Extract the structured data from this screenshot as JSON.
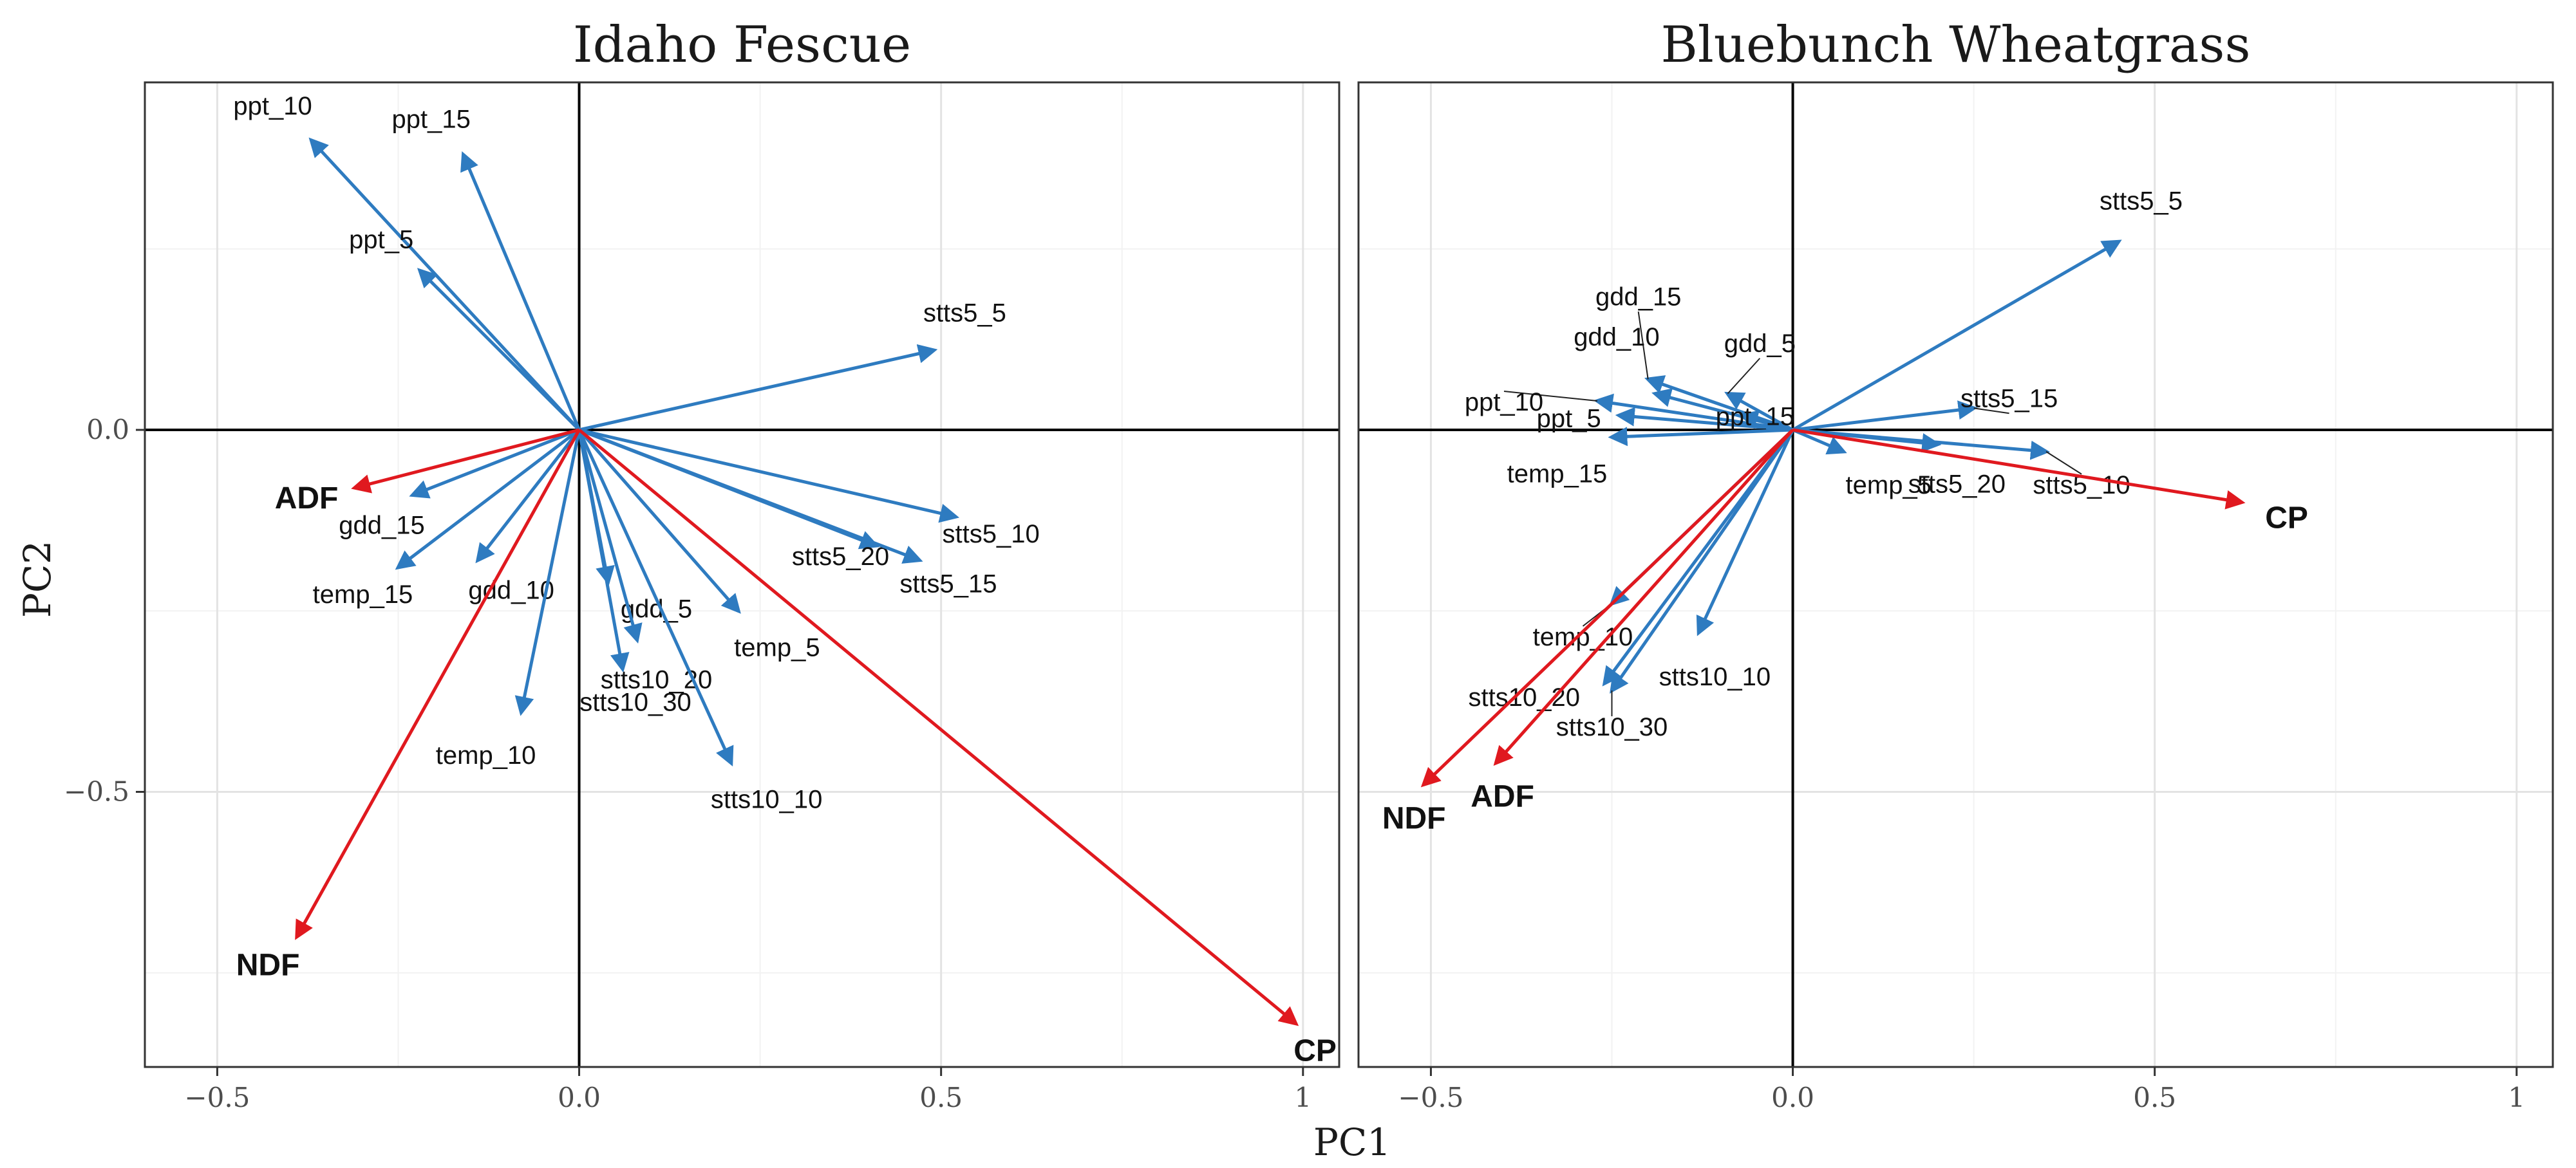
{
  "chart_data": [
    {
      "type": "biplot",
      "title": "Idaho Fescue",
      "xlabel": "PC1",
      "ylabel": "PC2",
      "xlim": [
        -0.6,
        1.05
      ],
      "ylim": [
        -0.88,
        0.48
      ],
      "x_ticks": [
        -0.5,
        0.0,
        0.5,
        1.0
      ],
      "x_tick_labels": [
        "−0.5",
        "0.0",
        "0.5",
        "1"
      ],
      "y_ticks": [
        -0.5,
        0.0
      ],
      "y_tick_labels": [
        "−0.5",
        "0.0"
      ],
      "colors": {
        "environment": "#2e7bc0",
        "response": "#e0191f"
      },
      "vectors": [
        {
          "name": "ppt_10",
          "x": -0.37,
          "y": 0.4,
          "kind": "environment"
        },
        {
          "name": "ppt_15",
          "x": -0.16,
          "y": 0.38,
          "kind": "environment"
        },
        {
          "name": "ppt_5",
          "x": -0.22,
          "y": 0.22,
          "kind": "environment"
        },
        {
          "name": "stts5_5",
          "x": 0.49,
          "y": 0.11,
          "kind": "environment"
        },
        {
          "name": "gdd_15",
          "x": -0.23,
          "y": -0.09,
          "kind": "environment"
        },
        {
          "name": "temp_15",
          "x": -0.25,
          "y": -0.19,
          "kind": "environment"
        },
        {
          "name": "gdd_10",
          "x": -0.14,
          "y": -0.18,
          "kind": "environment"
        },
        {
          "name": "temp_10",
          "x": -0.08,
          "y": -0.39,
          "kind": "environment"
        },
        {
          "name": "gdd_5",
          "x": 0.04,
          "y": -0.21,
          "kind": "environment"
        },
        {
          "name": "stts10_30",
          "x": 0.06,
          "y": -0.33,
          "kind": "environment"
        },
        {
          "name": "stts10_20",
          "x": 0.08,
          "y": -0.29,
          "kind": "environment"
        },
        {
          "name": "stts10_10",
          "x": 0.21,
          "y": -0.46,
          "kind": "environment"
        },
        {
          "name": "temp_5",
          "x": 0.22,
          "y": -0.25,
          "kind": "environment"
        },
        {
          "name": "stts5_20",
          "x": 0.41,
          "y": -0.16,
          "kind": "environment"
        },
        {
          "name": "stts5_15",
          "x": 0.47,
          "y": -0.18,
          "kind": "environment"
        },
        {
          "name": "stts5_10",
          "x": 0.52,
          "y": -0.12,
          "kind": "environment"
        },
        {
          "name": "ADF",
          "x": -0.31,
          "y": -0.08,
          "kind": "response"
        },
        {
          "name": "NDF",
          "x": -0.39,
          "y": -0.7,
          "kind": "response"
        },
        {
          "name": "CP",
          "x": 0.99,
          "y": -0.82,
          "kind": "response"
        }
      ]
    },
    {
      "type": "biplot",
      "title": "Bluebunch Wheatgrass",
      "xlabel": "PC1",
      "ylabel": "PC2",
      "xlim": [
        -0.6,
        1.05
      ],
      "ylim": [
        -0.88,
        0.48
      ],
      "x_ticks": [
        -0.5,
        0.0,
        0.5,
        1.0
      ],
      "x_tick_labels": [
        "−0.5",
        "0.0",
        "0.5",
        "1"
      ],
      "y_ticks": [
        -0.5,
        0.0
      ],
      "y_tick_labels": [
        "−0.5",
        "0.0"
      ],
      "colors": {
        "environment": "#2e7bc0",
        "response": "#e0191f"
      },
      "vectors": [
        {
          "name": "stts5_5",
          "x": 0.45,
          "y": 0.26,
          "kind": "environment"
        },
        {
          "name": "gdd_15",
          "x": -0.2,
          "y": 0.07,
          "kind": "environment"
        },
        {
          "name": "gdd_10",
          "x": -0.19,
          "y": 0.05,
          "kind": "environment"
        },
        {
          "name": "gdd_5",
          "x": -0.09,
          "y": 0.05,
          "kind": "environment"
        },
        {
          "name": "ppt_10",
          "x": -0.27,
          "y": 0.04,
          "kind": "environment"
        },
        {
          "name": "ppt_5",
          "x": -0.24,
          "y": 0.02,
          "kind": "environment"
        },
        {
          "name": "ppt_15",
          "x": -0.07,
          "y": 0.02,
          "kind": "environment"
        },
        {
          "name": "temp_15",
          "x": -0.25,
          "y": -0.01,
          "kind": "environment"
        },
        {
          "name": "temp_5",
          "x": 0.07,
          "y": -0.03,
          "kind": "environment"
        },
        {
          "name": "stts5_15",
          "x": 0.25,
          "y": 0.03,
          "kind": "environment"
        },
        {
          "name": "stts5_20",
          "x": 0.2,
          "y": -0.02,
          "kind": "environment"
        },
        {
          "name": "stts5_10",
          "x": 0.35,
          "y": -0.03,
          "kind": "environment"
        },
        {
          "name": "temp_10",
          "x": -0.25,
          "y": -0.24,
          "kind": "environment"
        },
        {
          "name": "stts10_20",
          "x": -0.26,
          "y": -0.35,
          "kind": "environment"
        },
        {
          "name": "stts10_30",
          "x": -0.25,
          "y": -0.36,
          "kind": "environment"
        },
        {
          "name": "stts10_10",
          "x": -0.13,
          "y": -0.28,
          "kind": "environment"
        },
        {
          "name": "CP",
          "x": 0.62,
          "y": -0.1,
          "kind": "response"
        },
        {
          "name": "NDF",
          "x": -0.51,
          "y": -0.49,
          "kind": "response"
        },
        {
          "name": "ADF",
          "x": -0.41,
          "y": -0.46,
          "kind": "response"
        }
      ]
    }
  ]
}
